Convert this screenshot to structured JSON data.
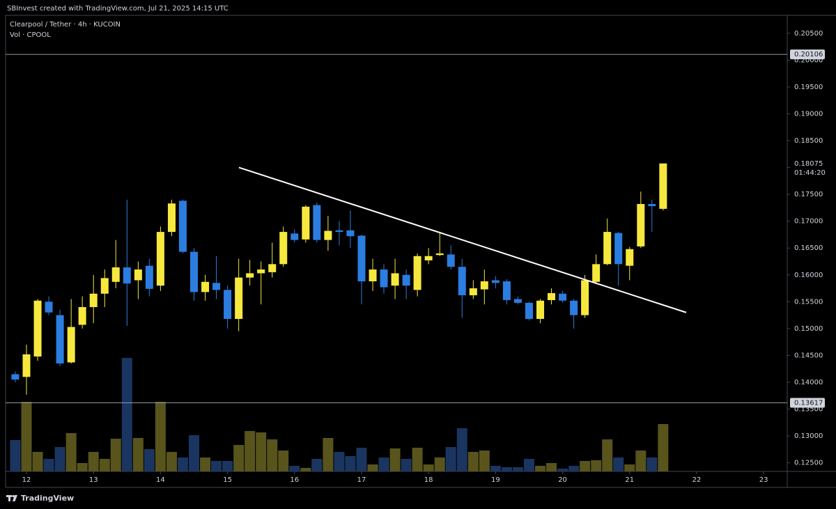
{
  "header": {
    "credit": "SBInvest created with TradingView.com, Jul 21, 2025 14:15 UTC",
    "footer": "TradingView"
  },
  "chart_data": {
    "type": "candlestick",
    "title": "Clearpool / Tether · 4h · KUCOIN",
    "volume_title": "Vol · CPOOL",
    "up_color": "#f7e83e",
    "down_color": "#2b7de0",
    "volume_up_color": "#58541c",
    "volume_down_color": "#1b3561",
    "x": [
      11.833,
      12,
      12.167,
      12.333,
      12.5,
      12.667,
      12.833,
      13,
      13.167,
      13.333,
      13.5,
      13.667,
      13.833,
      14,
      14.167,
      14.333,
      14.5,
      14.667,
      14.833,
      15,
      15.167,
      15.333,
      15.5,
      15.667,
      15.833,
      16,
      16.167,
      16.333,
      16.5,
      16.667,
      16.833,
      17,
      17.167,
      17.333,
      17.5,
      17.667,
      17.833,
      18,
      18.167,
      18.333,
      18.5,
      18.667,
      18.833,
      19,
      19.167,
      19.333,
      19.5,
      19.667,
      19.833,
      20,
      20.167,
      20.333,
      20.5,
      20.667,
      20.833,
      21,
      21.167,
      21.333,
      21.5
    ],
    "open": [
      0.1415,
      0.141,
      0.1448,
      0.155,
      0.1525,
      0.1437,
      0.1507,
      0.154,
      0.1565,
      0.1587,
      0.1614,
      0.159,
      0.1617,
      0.158,
      0.168,
      0.1738,
      0.1643,
      0.1568,
      0.1585,
      0.1572,
      0.1518,
      0.1595,
      0.1603,
      0.1605,
      0.162,
      0.1677,
      0.1666,
      0.173,
      0.1665,
      0.1683,
      0.1683,
      0.1673,
      0.1588,
      0.161,
      0.158,
      0.16,
      0.1572,
      0.1627,
      0.1637,
      0.1638,
      0.1615,
      0.1562,
      0.1573,
      0.159,
      0.1588,
      0.1555,
      0.1548,
      0.1518,
      0.1553,
      0.1565,
      0.1552,
      0.1525,
      0.1587,
      0.162,
      0.1678,
      0.1617,
      0.1653,
      0.1732,
      0.1723
    ],
    "high": [
      0.142,
      0.147,
      0.1555,
      0.156,
      0.1535,
      0.1555,
      0.156,
      0.16,
      0.161,
      0.1665,
      0.174,
      0.1625,
      0.163,
      0.169,
      0.174,
      0.174,
      0.165,
      0.16,
      0.1635,
      0.158,
      0.163,
      0.1628,
      0.1625,
      0.166,
      0.169,
      0.1685,
      0.173,
      0.1735,
      0.171,
      0.17,
      0.172,
      0.1675,
      0.163,
      0.162,
      0.163,
      0.161,
      0.164,
      0.165,
      0.168,
      0.1655,
      0.163,
      0.159,
      0.161,
      0.1598,
      0.1592,
      0.156,
      0.155,
      0.1555,
      0.1575,
      0.157,
      0.1555,
      0.16,
      0.1638,
      0.1705,
      0.168,
      0.1652,
      0.1755,
      0.174,
      0.18075
    ],
    "low": [
      0.14,
      0.1377,
      0.144,
      0.1525,
      0.143,
      0.1435,
      0.15,
      0.151,
      0.154,
      0.1575,
      0.1505,
      0.1555,
      0.156,
      0.157,
      0.1672,
      0.164,
      0.1552,
      0.1552,
      0.1555,
      0.15,
      0.1495,
      0.158,
      0.1545,
      0.1595,
      0.1615,
      0.166,
      0.166,
      0.166,
      0.1645,
      0.1655,
      0.165,
      0.1545,
      0.157,
      0.1565,
      0.1555,
      0.1555,
      0.156,
      0.162,
      0.1635,
      0.161,
      0.152,
      0.1555,
      0.1545,
      0.1575,
      0.1545,
      0.1545,
      0.1515,
      0.151,
      0.1545,
      0.1548,
      0.15,
      0.152,
      0.1583,
      0.1618,
      0.158,
      0.159,
      0.165,
      0.168,
      0.172
    ],
    "close": [
      0.1405,
      0.1452,
      0.1552,
      0.153,
      0.1435,
      0.1503,
      0.154,
      0.1565,
      0.1594,
      0.1614,
      0.1584,
      0.161,
      0.1574,
      0.168,
      0.1733,
      0.1643,
      0.1568,
      0.1587,
      0.1572,
      0.1518,
      0.1595,
      0.1603,
      0.161,
      0.162,
      0.168,
      0.1665,
      0.1727,
      0.1665,
      0.1682,
      0.168,
      0.1672,
      0.1588,
      0.161,
      0.1577,
      0.1603,
      0.158,
      0.1635,
      0.1635,
      0.164,
      0.1615,
      0.1562,
      0.1575,
      0.1588,
      0.1585,
      0.1553,
      0.1548,
      0.1518,
      0.1552,
      0.1566,
      0.1552,
      0.1525,
      0.159,
      0.162,
      0.168,
      0.162,
      0.1648,
      0.1732,
      0.1728,
      0.18075
    ],
    "volume": [
      45,
      100,
      28,
      18,
      35,
      55,
      12,
      28,
      18,
      47,
      163,
      48,
      32,
      100,
      28,
      20,
      52,
      20,
      15,
      15,
      38,
      58,
      56,
      46,
      30,
      8,
      5,
      18,
      48,
      28,
      22,
      34,
      10,
      20,
      33,
      18,
      34,
      10,
      20,
      35,
      62,
      28,
      30,
      8,
      6,
      6,
      18,
      8,
      12,
      4,
      8,
      15,
      16,
      46,
      20,
      10,
      30,
      20,
      68
    ],
    "xlim": [
      11.688,
      23.352
    ],
    "xticks": [
      12,
      13,
      14,
      15,
      16,
      17,
      18,
      19,
      20,
      21,
      22,
      23
    ],
    "ylim": [
      0.1234,
      0.2086
    ],
    "yticks": [
      {
        "value": 0.125,
        "label": "0.12500"
      },
      {
        "value": 0.13,
        "label": "0.13000"
      },
      {
        "value": 0.135,
        "label": "0.13500"
      },
      {
        "value": 0.14,
        "label": "0.14000"
      },
      {
        "value": 0.145,
        "label": "0.14500"
      },
      {
        "value": 0.15,
        "label": "0.15000"
      },
      {
        "value": 0.155,
        "label": "0.15500"
      },
      {
        "value": 0.16,
        "label": "0.16000"
      },
      {
        "value": 0.165,
        "label": "0.16500"
      },
      {
        "value": 0.17,
        "label": "0.17000"
      },
      {
        "value": 0.175,
        "label": "0.17500"
      },
      {
        "value": 0.18,
        "label": "0.18000"
      },
      {
        "value": 0.185,
        "label": "0.18500"
      },
      {
        "value": 0.19,
        "label": "0.19000"
      },
      {
        "value": 0.195,
        "label": "0.19500"
      },
      {
        "value": 0.2,
        "label": "0.20000"
      },
      {
        "value": 0.205,
        "label": "0.20500"
      }
    ],
    "price_lines": [
      0.20106,
      0.13617
    ],
    "last_price": 0.18075,
    "countdown": "01:44:20",
    "trendline": {
      "x": [
        15.17,
        21.844
      ],
      "y": [
        0.18,
        0.153
      ]
    }
  }
}
